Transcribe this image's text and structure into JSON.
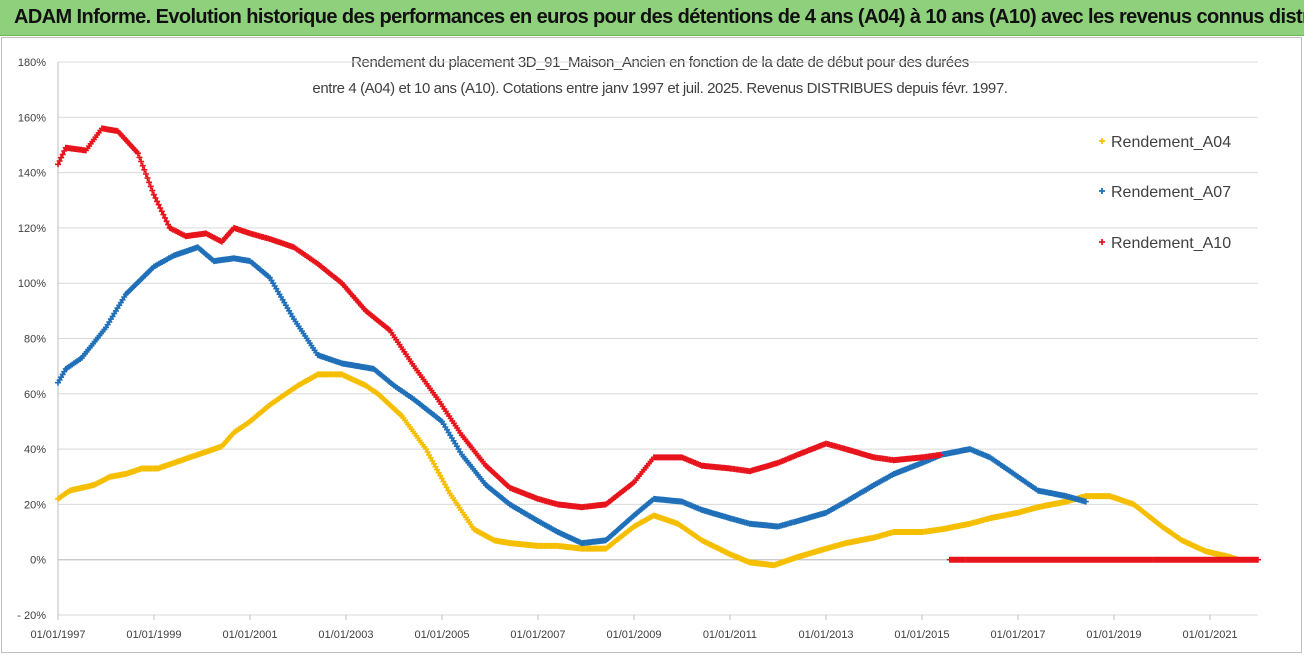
{
  "header": {
    "title": "ADAM Informe. Evolution historique des performances en euros pour des détentions de 4 ans (A04) à 10 ans (A10) avec les revenus connus distribués"
  },
  "chart_data": {
    "type": "scatter",
    "title_lines": [
      "Rendement du placement 3D_91_Maison_Ancien en fonction de la date de début pour des durées",
      "entre 4 (A04) et 10 ans (A10).  Cotations entre janv 1997 et juil. 2025. Revenus DISTRIBUES depuis févr. 1997."
    ],
    "xlabel": "",
    "ylabel": "",
    "x_range": [
      "1997-01-01",
      "2022-01-01"
    ],
    "x_ticks": [
      "01/01/1997",
      "01/01/1999",
      "01/01/2001",
      "01/01/2003",
      "01/01/2005",
      "01/01/2007",
      "01/01/2009",
      "01/01/2011",
      "01/01/2013",
      "01/01/2015",
      "01/01/2017",
      "01/01/2019",
      "01/01/2021"
    ],
    "ylim": [
      -20,
      180
    ],
    "y_ticks": [
      "- 20%",
      "0%",
      "20%",
      "40%",
      "60%",
      "80%",
      "100%",
      "120%",
      "140%",
      "160%",
      "180%"
    ],
    "y_tick_values": [
      -20,
      0,
      20,
      40,
      60,
      80,
      100,
      120,
      140,
      160,
      180
    ],
    "grid": "horizontal",
    "legend_position": "right",
    "series": [
      {
        "name": "Rendement_A04",
        "color": "#f5bf00",
        "points": [
          [
            "1997-01-01",
            22
          ],
          [
            "1997-04-01",
            25
          ],
          [
            "1997-10-01",
            27
          ],
          [
            "1998-02-01",
            30
          ],
          [
            "1998-06-01",
            31
          ],
          [
            "1998-10-01",
            33
          ],
          [
            "1999-02-01",
            33
          ],
          [
            "1999-06-01",
            35
          ],
          [
            "1999-10-01",
            37
          ],
          [
            "2000-02-01",
            39
          ],
          [
            "2000-06-01",
            41
          ],
          [
            "2000-09-01",
            46
          ],
          [
            "2001-01-01",
            50
          ],
          [
            "2001-06-01",
            56
          ],
          [
            "2002-01-01",
            63
          ],
          [
            "2002-06-01",
            67
          ],
          [
            "2002-12-01",
            67
          ],
          [
            "2003-06-01",
            63
          ],
          [
            "2003-09-01",
            60
          ],
          [
            "2004-03-01",
            52
          ],
          [
            "2004-09-01",
            40
          ],
          [
            "2005-03-01",
            24
          ],
          [
            "2005-09-01",
            11
          ],
          [
            "2006-02-01",
            7
          ],
          [
            "2006-06-01",
            6
          ],
          [
            "2007-01-01",
            5
          ],
          [
            "2007-06-01",
            5
          ],
          [
            "2007-12-01",
            4
          ],
          [
            "2008-06-01",
            4
          ],
          [
            "2009-01-01",
            12
          ],
          [
            "2009-06-01",
            16
          ],
          [
            "2009-12-01",
            13
          ],
          [
            "2010-06-01",
            7
          ],
          [
            "2011-01-01",
            2
          ],
          [
            "2011-06-01",
            -1
          ],
          [
            "2011-12-01",
            -2
          ],
          [
            "2012-06-01",
            1
          ],
          [
            "2013-01-01",
            4
          ],
          [
            "2013-06-01",
            6
          ],
          [
            "2014-01-01",
            8
          ],
          [
            "2014-06-01",
            10
          ],
          [
            "2015-01-01",
            10
          ],
          [
            "2015-06-01",
            11
          ],
          [
            "2016-01-01",
            13
          ],
          [
            "2016-06-01",
            15
          ],
          [
            "2017-01-01",
            17
          ],
          [
            "2017-06-01",
            19
          ],
          [
            "2018-01-01",
            21
          ],
          [
            "2018-06-01",
            23
          ],
          [
            "2018-12-01",
            23
          ],
          [
            "2019-06-01",
            20
          ],
          [
            "2020-01-01",
            12
          ],
          [
            "2020-06-01",
            7
          ],
          [
            "2020-12-01",
            3
          ],
          [
            "2021-06-01",
            1
          ],
          [
            "2021-08-01",
            0
          ]
        ]
      },
      {
        "name": "Rendement_A07",
        "color": "#1f70b8",
        "points": [
          [
            "1997-01-01",
            64
          ],
          [
            "1997-03-01",
            69
          ],
          [
            "1997-07-01",
            73
          ],
          [
            "1998-01-01",
            84
          ],
          [
            "1998-06-01",
            96
          ],
          [
            "1999-01-01",
            106
          ],
          [
            "1999-06-01",
            110
          ],
          [
            "1999-12-01",
            113
          ],
          [
            "2000-04-01",
            108
          ],
          [
            "2000-09-01",
            109
          ],
          [
            "2001-01-01",
            108
          ],
          [
            "2001-06-01",
            102
          ],
          [
            "2001-12-01",
            87
          ],
          [
            "2002-06-01",
            74
          ],
          [
            "2002-12-01",
            71
          ],
          [
            "2003-04-01",
            70
          ],
          [
            "2003-08-01",
            69
          ],
          [
            "2004-01-01",
            63
          ],
          [
            "2004-06-01",
            58
          ],
          [
            "2005-01-01",
            50
          ],
          [
            "2005-06-01",
            38
          ],
          [
            "2005-12-01",
            27
          ],
          [
            "2006-06-01",
            20
          ],
          [
            "2007-01-01",
            14
          ],
          [
            "2007-06-01",
            10
          ],
          [
            "2007-12-01",
            6
          ],
          [
            "2008-06-01",
            7
          ],
          [
            "2009-01-01",
            16
          ],
          [
            "2009-06-01",
            22
          ],
          [
            "2010-01-01",
            21
          ],
          [
            "2010-06-01",
            18
          ],
          [
            "2011-01-01",
            15
          ],
          [
            "2011-06-01",
            13
          ],
          [
            "2012-01-01",
            12
          ],
          [
            "2012-06-01",
            14
          ],
          [
            "2013-01-01",
            17
          ],
          [
            "2013-06-01",
            21
          ],
          [
            "2014-01-01",
            27
          ],
          [
            "2014-06-01",
            31
          ],
          [
            "2015-01-01",
            35
          ],
          [
            "2015-06-01",
            38
          ],
          [
            "2016-01-01",
            40
          ],
          [
            "2016-06-01",
            37
          ],
          [
            "2017-01-01",
            30
          ],
          [
            "2017-06-01",
            25
          ],
          [
            "2018-01-01",
            23
          ],
          [
            "2018-06-01",
            21
          ]
        ]
      },
      {
        "name": "Rendement_A10",
        "color": "#e8141c",
        "points": [
          [
            "1997-01-01",
            143
          ],
          [
            "1997-03-01",
            149
          ],
          [
            "1997-08-01",
            148
          ],
          [
            "1997-12-01",
            156
          ],
          [
            "1998-04-01",
            155
          ],
          [
            "1998-09-01",
            147
          ],
          [
            "1999-01-01",
            132
          ],
          [
            "1999-05-01",
            120
          ],
          [
            "1999-09-01",
            117
          ],
          [
            "2000-02-01",
            118
          ],
          [
            "2000-06-01",
            115
          ],
          [
            "2000-09-01",
            120
          ],
          [
            "2001-01-01",
            118
          ],
          [
            "2001-06-01",
            116
          ],
          [
            "2001-12-01",
            113
          ],
          [
            "2002-06-01",
            107
          ],
          [
            "2002-12-01",
            100
          ],
          [
            "2003-06-01",
            90
          ],
          [
            "2003-12-01",
            83
          ],
          [
            "2004-06-01",
            70
          ],
          [
            "2004-12-01",
            58
          ],
          [
            "2005-06-01",
            45
          ],
          [
            "2005-12-01",
            34
          ],
          [
            "2006-06-01",
            26
          ],
          [
            "2007-01-01",
            22
          ],
          [
            "2007-06-01",
            20
          ],
          [
            "2007-12-01",
            19
          ],
          [
            "2008-06-01",
            20
          ],
          [
            "2009-01-01",
            28
          ],
          [
            "2009-06-01",
            37
          ],
          [
            "2010-01-01",
            37
          ],
          [
            "2010-06-01",
            34
          ],
          [
            "2011-01-01",
            33
          ],
          [
            "2011-06-01",
            32
          ],
          [
            "2012-01-01",
            35
          ],
          [
            "2012-06-01",
            38
          ],
          [
            "2013-01-01",
            42
          ],
          [
            "2013-06-01",
            40
          ],
          [
            "2014-01-01",
            37
          ],
          [
            "2014-06-01",
            36
          ],
          [
            "2015-01-01",
            37
          ],
          [
            "2015-06-01",
            38
          ],
          [
            "2015-08-01",
            0
          ],
          [
            "2016-06-01",
            0
          ],
          [
            "2017-06-01",
            0
          ],
          [
            "2018-06-01",
            0
          ],
          [
            "2019-06-01",
            0
          ],
          [
            "2020-06-01",
            0
          ],
          [
            "2021-06-01",
            0
          ],
          [
            "2022-01-01",
            0
          ]
        ]
      }
    ]
  }
}
